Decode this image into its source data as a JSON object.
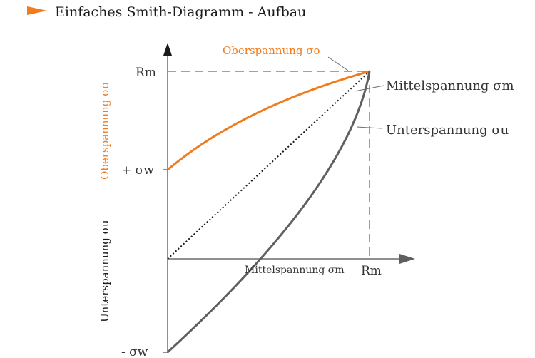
{
  "title": "Einfaches Smith-Diagramm - Aufbau",
  "colors": {
    "accent": "#f07c1e",
    "curve_gray": "#5f5f5f",
    "axis": "#6b6b6b",
    "text": "#333333",
    "dashed": "#6b6b6b"
  },
  "icons": {
    "bullet": "orange-arrow-bullet-icon"
  },
  "y_axis": {
    "tick_top": "Rm",
    "tick_upper": "+ σw",
    "tick_lower": "- σw",
    "label_upper": "Oberspannung σo",
    "label_lower": "Unterspannung σu"
  },
  "x_axis": {
    "label": "Mittelspannung σm",
    "tick_end": "Rm"
  },
  "curves": {
    "upper_label_top": "Oberspannung σo",
    "middle_label": "Mittelspannung σm",
    "lower_label": "Unterspannung σu"
  }
}
